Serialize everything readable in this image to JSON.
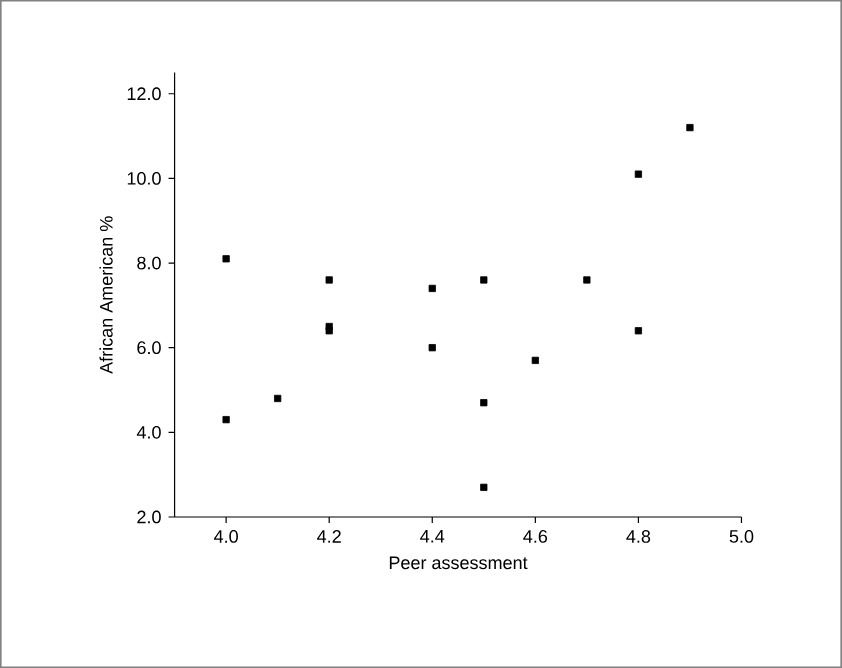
{
  "chart_data": {
    "type": "scatter",
    "xlabel": "Peer assessment",
    "ylabel": "African American %",
    "x": [
      4.0,
      4.0,
      4.1,
      4.2,
      4.2,
      4.2,
      4.4,
      4.4,
      4.5,
      4.5,
      4.5,
      4.6,
      4.7,
      4.8,
      4.8,
      4.9
    ],
    "values": [
      8.1,
      4.3,
      4.8,
      7.6,
      6.5,
      6.4,
      7.4,
      6.0,
      7.6,
      4.7,
      2.7,
      5.7,
      7.6,
      10.1,
      6.4,
      11.2
    ],
    "color": "#000000",
    "marker": "square",
    "xlim": [
      3.9,
      5.0
    ],
    "ylim": [
      2.0,
      12.5
    ],
    "xticks": [
      {
        "value": 4.0,
        "label": "4.0"
      },
      4.2,
      4.4,
      4.6,
      4.8,
      {
        "value": 5.0,
        "label": "5.0"
      }
    ],
    "yticks": [
      {
        "value": 2.0,
        "label": "2.0"
      },
      {
        "value": 4.0,
        "label": "4.0"
      },
      {
        "value": 6.0,
        "label": "6.0"
      },
      {
        "value": 8.0,
        "label": "8.0"
      },
      {
        "value": 10.0,
        "label": "10.0"
      },
      {
        "value": 12.0,
        "label": "12.0"
      }
    ],
    "grid": false
  }
}
